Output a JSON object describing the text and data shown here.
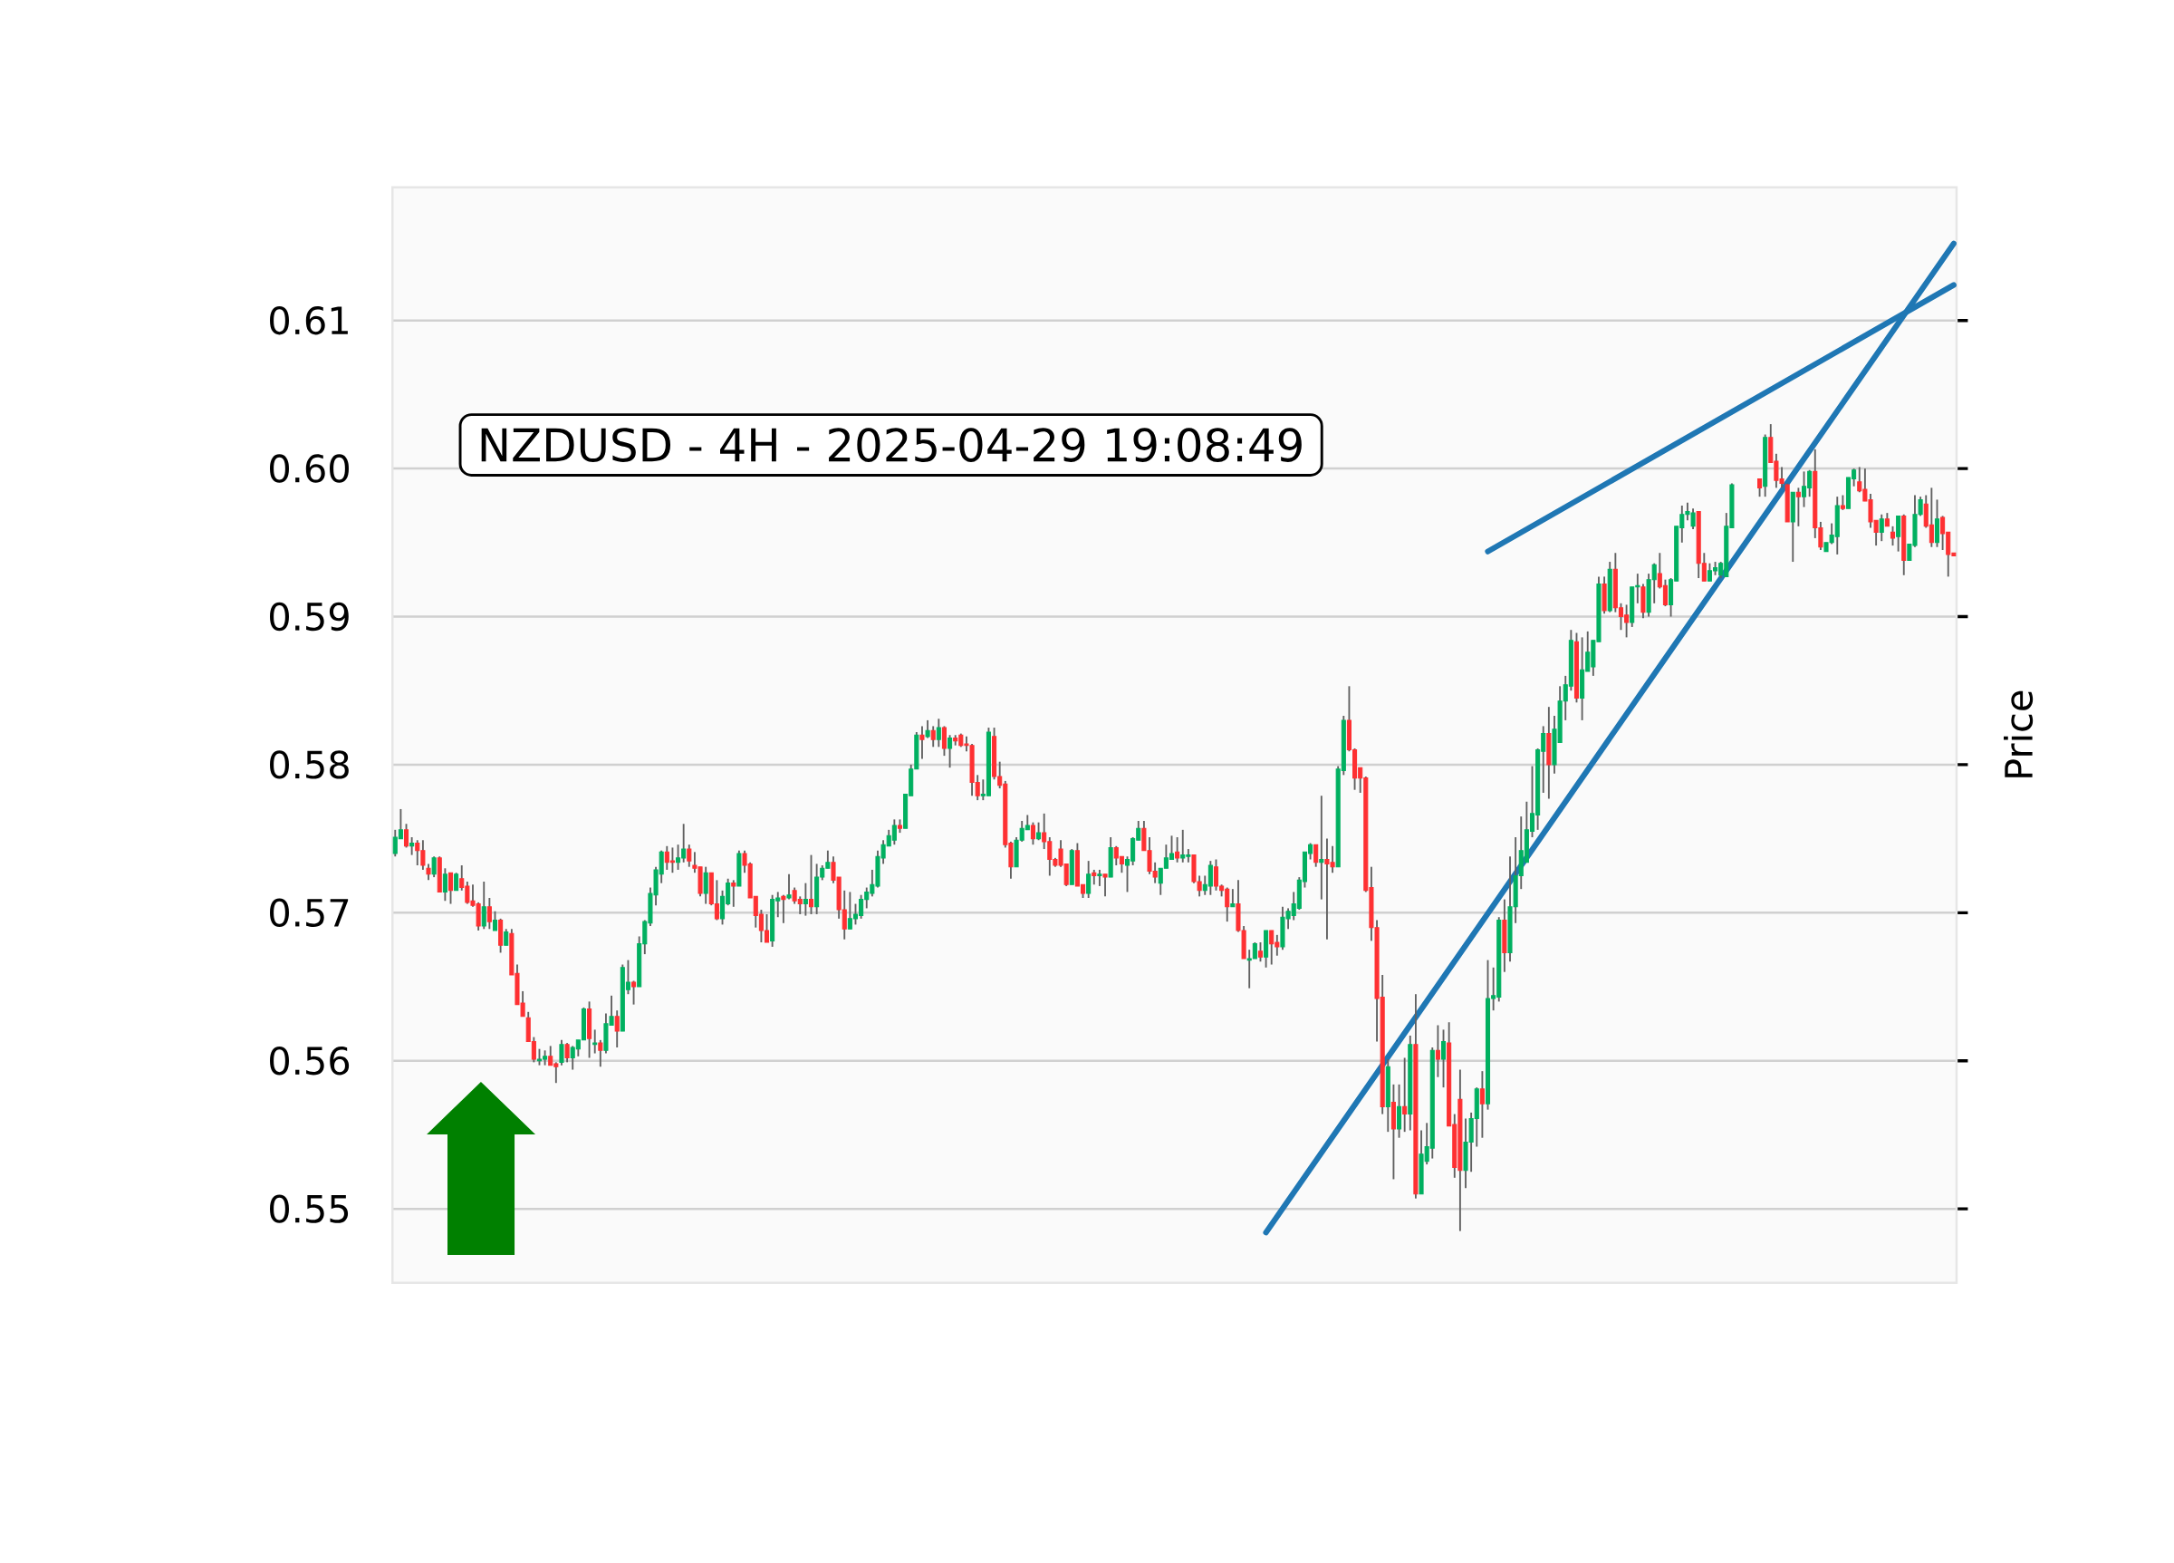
{
  "chart_data": {
    "type": "candlestick",
    "title": "NZDUSD - 4H - 2025-04-29 19:08:49",
    "ylabel": "Price",
    "categories": [
      null,
      null,
      null,
      null,
      null,
      null,
      null,
      null,
      null,
      null,
      null,
      null,
      null,
      null,
      null,
      null,
      null,
      null,
      null,
      null,
      null,
      null,
      null,
      null,
      null,
      null,
      null,
      null,
      null,
      null,
      null,
      null,
      null,
      null,
      null,
      null,
      null,
      null,
      null,
      null,
      null,
      null,
      null,
      null,
      null,
      null,
      null,
      null,
      null,
      null,
      null,
      null,
      null,
      null,
      null,
      null,
      null,
      null,
      null,
      null,
      null,
      null,
      null,
      null,
      null,
      null,
      null,
      null,
      null,
      null,
      null,
      null,
      null,
      null,
      null,
      null,
      null,
      null,
      null,
      null,
      null,
      null,
      null,
      null,
      null,
      null,
      null,
      null,
      null,
      null,
      null,
      null,
      null,
      null,
      null,
      null,
      null,
      null,
      null,
      null,
      null,
      null,
      null,
      null,
      null,
      null,
      null,
      null,
      null,
      null,
      null,
      null,
      null,
      null,
      null,
      null,
      null,
      null,
      null,
      null,
      null,
      null,
      null,
      null,
      null,
      null,
      null,
      null,
      null,
      null,
      null,
      null,
      null,
      null,
      null,
      null,
      null,
      null,
      null,
      null,
      null,
      null,
      null,
      null,
      null,
      null,
      null,
      null,
      null,
      null,
      null,
      null,
      null,
      null,
      null,
      null,
      null,
      null,
      null,
      null,
      null,
      null,
      null,
      null,
      null,
      null,
      null,
      null,
      null,
      null,
      null,
      null,
      null,
      null,
      null,
      null,
      null,
      null,
      null,
      null,
      null,
      null,
      null,
      null,
      null,
      null,
      null,
      null,
      null,
      null,
      null,
      null,
      null,
      null,
      null,
      null,
      null,
      null,
      null,
      null,
      null,
      null,
      null,
      null,
      null,
      null,
      null,
      null,
      null,
      null,
      null,
      null,
      null,
      null,
      null,
      null,
      null,
      null,
      null,
      null,
      null,
      null,
      null,
      null,
      null,
      null,
      null,
      null,
      null,
      null,
      null,
      null,
      null,
      null,
      null,
      null,
      null,
      null,
      null,
      null,
      null,
      null,
      null,
      null,
      null,
      null,
      null,
      null,
      null,
      null,
      null,
      null,
      null,
      null,
      null,
      null,
      null,
      null,
      null,
      null,
      null,
      null,
      null,
      null,
      null,
      null,
      null,
      null,
      null,
      null,
      null,
      null,
      null,
      null,
      null,
      null,
      null,
      null,
      null,
      null,
      null,
      null
    ],
    "ylim": [
      0.545,
      0.619
    ],
    "yticks": [
      0.55,
      0.56,
      0.57,
      0.58,
      0.59,
      {
        "value": 0.6,
        "label": "0.60"
      },
      0.61
    ],
    "grid": "y",
    "ohlc": [
      [
        0.574,
        0.5756,
        0.5738,
        0.5751
      ],
      [
        0.575,
        0.577,
        0.575,
        0.5756
      ],
      [
        0.5756,
        0.576,
        0.5744,
        0.5745
      ],
      [
        0.5745,
        0.5751,
        0.5739,
        0.5747
      ],
      [
        0.5747,
        0.5749,
        0.5732,
        0.5742
      ],
      [
        0.5742,
        0.5749,
        0.5729,
        0.5732
      ],
      [
        0.573,
        0.5733,
        0.5722,
        0.5726
      ],
      [
        0.5726,
        0.5738,
        0.5724,
        0.5737
      ],
      [
        0.5737,
        0.5738,
        0.5714,
        0.5714
      ],
      [
        0.5714,
        0.573,
        0.5708,
        0.5726
      ],
      [
        0.5727,
        0.5727,
        0.5706,
        0.5715
      ],
      [
        0.5715,
        0.5727,
        0.5715,
        0.5726
      ],
      [
        0.5723,
        0.5732,
        0.5715,
        0.5717
      ],
      [
        0.5718,
        0.5721,
        0.5706,
        0.5707
      ],
      [
        0.5708,
        0.5719,
        0.5704,
        0.5705
      ],
      [
        0.5706,
        0.5707,
        0.5688,
        0.5691
      ],
      [
        0.5691,
        0.5721,
        0.5689,
        0.5704
      ],
      [
        0.5704,
        0.571,
        0.5689,
        0.5694
      ],
      [
        0.5688,
        0.5701,
        0.5688,
        0.5695
      ],
      [
        0.5695,
        0.5696,
        0.5673,
        0.5678
      ],
      [
        0.5678,
        0.5689,
        0.5678,
        0.5687
      ],
      [
        0.5686,
        0.5689,
        0.5658,
        0.5658
      ],
      [
        0.5659,
        0.5665,
        0.5638,
        0.5638
      ],
      [
        0.5639,
        0.5647,
        0.563,
        0.563
      ],
      [
        0.5629,
        0.5633,
        0.5613,
        0.5613
      ],
      [
        0.5613,
        0.5616,
        0.5599,
        0.5601
      ],
      [
        0.56,
        0.5608,
        0.5597,
        0.5601
      ],
      [
        0.5601,
        0.5607,
        0.5597,
        0.5603
      ],
      [
        0.5603,
        0.561,
        0.5597,
        0.5597
      ],
      [
        0.5598,
        0.5599,
        0.5585,
        0.5596
      ],
      [
        0.5599,
        0.5614,
        0.5597,
        0.5611
      ],
      [
        0.5611,
        0.5612,
        0.5599,
        0.5602
      ],
      [
        0.5602,
        0.561,
        0.5594,
        0.5609
      ],
      [
        0.5608,
        0.5614,
        0.5603,
        0.5614
      ],
      [
        0.5614,
        0.5636,
        0.5614,
        0.5635
      ],
      [
        0.5635,
        0.564,
        0.5602,
        0.5615
      ],
      [
        0.5611,
        0.5621,
        0.5605,
        0.5612
      ],
      [
        0.5612,
        0.5614,
        0.5596,
        0.5607
      ],
      [
        0.5607,
        0.5632,
        0.5605,
        0.5625
      ],
      [
        0.5624,
        0.5644,
        0.5624,
        0.563
      ],
      [
        0.563,
        0.5634,
        0.5609,
        0.562
      ],
      [
        0.562,
        0.5665,
        0.562,
        0.5663
      ],
      [
        0.5648,
        0.5668,
        0.5645,
        0.5653
      ],
      [
        0.5653,
        0.5654,
        0.5638,
        0.565
      ],
      [
        0.565,
        0.5684,
        0.565,
        0.5679
      ],
      [
        0.5679,
        0.5695,
        0.5672,
        0.5694
      ],
      [
        0.5693,
        0.5717,
        0.5691,
        0.5713
      ],
      [
        0.5712,
        0.5731,
        0.5705,
        0.5729
      ],
      [
        0.5726,
        0.5742,
        0.572,
        0.5741
      ],
      [
        0.5741,
        0.5745,
        0.5729,
        0.5734
      ],
      [
        0.5735,
        0.5744,
        0.5727,
        0.5734
      ],
      [
        0.5734,
        0.5746,
        0.5729,
        0.5737
      ],
      [
        0.5737,
        0.576,
        0.5734,
        0.5743
      ],
      [
        0.5743,
        0.5746,
        0.5731,
        0.5735
      ],
      [
        0.5732,
        0.5741,
        0.5727,
        0.573
      ],
      [
        0.5731,
        0.5731,
        0.5711,
        0.5713
      ],
      [
        0.5713,
        0.5731,
        0.5706,
        0.5727
      ],
      [
        0.5727,
        0.5727,
        0.5705,
        0.5706
      ],
      [
        0.5706,
        0.5722,
        0.5695,
        0.5696
      ],
      [
        0.5696,
        0.5715,
        0.5692,
        0.5711
      ],
      [
        0.5706,
        0.5723,
        0.5705,
        0.572
      ],
      [
        0.572,
        0.5722,
        0.5704,
        0.5718
      ],
      [
        0.5718,
        0.5742,
        0.5718,
        0.574
      ],
      [
        0.574,
        0.5742,
        0.5727,
        0.5732
      ],
      [
        0.5733,
        0.5734,
        0.571,
        0.571
      ],
      [
        0.5711,
        0.5711,
        0.569,
        0.5698
      ],
      [
        0.5699,
        0.5702,
        0.568,
        0.5688
      ],
      [
        0.5688,
        0.5699,
        0.568,
        0.568
      ],
      [
        0.5681,
        0.5712,
        0.5677,
        0.5709
      ],
      [
        0.5708,
        0.5714,
        0.5697,
        0.571
      ],
      [
        0.5711,
        0.5712,
        0.5693,
        0.5709
      ],
      [
        0.571,
        0.5726,
        0.5709,
        0.5712
      ],
      [
        0.5715,
        0.5717,
        0.5706,
        0.5708
      ],
      [
        0.5709,
        0.5711,
        0.5699,
        0.5706
      ],
      [
        0.5706,
        0.572,
        0.5698,
        0.5709
      ],
      [
        0.5709,
        0.5739,
        0.5699,
        0.5704
      ],
      [
        0.5704,
        0.5733,
        0.5699,
        0.5724
      ],
      [
        0.5724,
        0.5732,
        0.5722,
        0.573
      ],
      [
        0.573,
        0.5742,
        0.573,
        0.5734
      ],
      [
        0.5734,
        0.5738,
        0.572,
        0.5722
      ],
      [
        0.5724,
        0.5724,
        0.5696,
        0.5702
      ],
      [
        0.5702,
        0.5715,
        0.5682,
        0.5689
      ],
      [
        0.5689,
        0.5714,
        0.5689,
        0.5696
      ],
      [
        0.5696,
        0.5706,
        0.5692,
        0.5699
      ],
      [
        0.5698,
        0.5712,
        0.5696,
        0.5709
      ],
      [
        0.5709,
        0.5717,
        0.5703,
        0.5714
      ],
      [
        0.5713,
        0.5729,
        0.5711,
        0.5719
      ],
      [
        0.5718,
        0.5742,
        0.5717,
        0.5738
      ],
      [
        0.5737,
        0.5749,
        0.5733,
        0.5746
      ],
      [
        0.5745,
        0.5756,
        0.5745,
        0.5752
      ],
      [
        0.5749,
        0.5763,
        0.5746,
        0.5759
      ],
      [
        0.5759,
        0.5763,
        0.5754,
        0.5757
      ],
      [
        0.5757,
        0.578,
        0.5757,
        0.578
      ],
      [
        0.5779,
        0.58,
        0.5779,
        0.5797
      ],
      [
        0.5797,
        0.5822,
        0.5797,
        0.582
      ],
      [
        0.582,
        0.5826,
        0.5804,
        0.5817
      ],
      [
        0.5819,
        0.583,
        0.5818,
        0.5823
      ],
      [
        0.5823,
        0.5826,
        0.5812,
        0.5817
      ],
      [
        0.5817,
        0.5831,
        0.5812,
        0.5825
      ],
      [
        0.5825,
        0.5826,
        0.5806,
        0.5811
      ],
      [
        0.5811,
        0.582,
        0.5798,
        0.5818
      ],
      [
        0.5818,
        0.582,
        0.5813,
        0.5816
      ],
      [
        0.582,
        0.5821,
        0.5812,
        0.5813
      ],
      [
        0.5814,
        0.5819,
        0.5809,
        0.5813
      ],
      [
        0.5813,
        0.5814,
        0.5779,
        0.5788
      ],
      [
        0.5788,
        0.5793,
        0.5776,
        0.5779
      ],
      [
        0.5779,
        0.579,
        0.5776,
        0.578
      ],
      [
        0.5779,
        0.5825,
        0.5779,
        0.5822
      ],
      [
        0.5819,
        0.5825,
        0.579,
        0.5792
      ],
      [
        0.5792,
        0.5802,
        0.5784,
        0.5786
      ],
      [
        0.5787,
        0.5789,
        0.5744,
        0.5746
      ],
      [
        0.5747,
        0.5748,
        0.5723,
        0.5731
      ],
      [
        0.5731,
        0.5751,
        0.5731,
        0.5749
      ],
      [
        0.5749,
        0.5762,
        0.5748,
        0.5757
      ],
      [
        0.5756,
        0.5766,
        0.5756,
        0.5759
      ],
      [
        0.5759,
        0.5761,
        0.5746,
        0.575
      ],
      [
        0.575,
        0.5761,
        0.5749,
        0.5754
      ],
      [
        0.5754,
        0.5767,
        0.5743,
        0.5748
      ],
      [
        0.5748,
        0.5751,
        0.5725,
        0.5736
      ],
      [
        0.5736,
        0.5737,
        0.5731,
        0.5732
      ],
      [
        0.5743,
        0.5749,
        0.5731,
        0.5732
      ],
      [
        0.5733,
        0.5733,
        0.5718,
        0.5719
      ],
      [
        0.5719,
        0.5743,
        0.5719,
        0.5742
      ],
      [
        0.5742,
        0.5747,
        0.5718,
        0.5718
      ],
      [
        0.5719,
        0.5719,
        0.571,
        0.5713
      ],
      [
        0.5713,
        0.5735,
        0.571,
        0.5726
      ],
      [
        0.5727,
        0.5729,
        0.5719,
        0.5725
      ],
      [
        0.5725,
        0.5729,
        0.5718,
        0.5726
      ],
      [
        0.5726,
        0.5726,
        0.5711,
        0.5724
      ],
      [
        0.5724,
        0.5751,
        0.5724,
        0.5744
      ],
      [
        0.5744,
        0.5745,
        0.5732,
        0.5737
      ],
      [
        0.5738,
        0.5738,
        0.5727,
        0.5733
      ],
      [
        0.5732,
        0.5738,
        0.5714,
        0.5736
      ],
      [
        0.5735,
        0.5751,
        0.5732,
        0.575
      ],
      [
        0.5749,
        0.5762,
        0.5749,
        0.5757
      ],
      [
        0.5757,
        0.5762,
        0.5742,
        0.5742
      ],
      [
        0.5742,
        0.5751,
        0.5726,
        0.5728
      ],
      [
        0.5728,
        0.5734,
        0.572,
        0.5724
      ],
      [
        0.572,
        0.573,
        0.5712,
        0.573
      ],
      [
        0.573,
        0.5746,
        0.573,
        0.5737
      ],
      [
        0.5736,
        0.5752,
        0.5736,
        0.574
      ],
      [
        0.5741,
        0.5751,
        0.5734,
        0.5737
      ],
      [
        0.5737,
        0.5756,
        0.5734,
        0.5739
      ],
      [
        0.5738,
        0.5743,
        0.5734,
        0.5739
      ],
      [
        0.5739,
        0.5739,
        0.572,
        0.5721
      ],
      [
        0.5721,
        0.5725,
        0.5711,
        0.5715
      ],
      [
        0.5715,
        0.5725,
        0.5712,
        0.5719
      ],
      [
        0.5718,
        0.5735,
        0.5712,
        0.5732
      ],
      [
        0.5731,
        0.5736,
        0.5715,
        0.5718
      ],
      [
        0.5718,
        0.5719,
        0.5711,
        0.5715
      ],
      [
        0.5716,
        0.5717,
        0.5694,
        0.5704
      ],
      [
        0.5704,
        0.5716,
        0.5704,
        0.5706
      ],
      [
        0.5706,
        0.5722,
        0.5687,
        0.5688
      ],
      [
        0.5688,
        0.5691,
        0.5669,
        0.5669
      ],
      [
        0.5668,
        0.5675,
        0.5649,
        0.5669
      ],
      [
        0.5669,
        0.568,
        0.5669,
        0.5679
      ],
      [
        0.5674,
        0.568,
        0.5667,
        0.567
      ],
      [
        0.567,
        0.5688,
        0.5663,
        0.5688
      ],
      [
        0.5688,
        0.5688,
        0.5665,
        0.5679
      ],
      [
        0.568,
        0.5685,
        0.5671,
        0.5677
      ],
      [
        0.5677,
        0.5704,
        0.5675,
        0.5697
      ],
      [
        0.5696,
        0.5703,
        0.5689,
        0.5701
      ],
      [
        0.5698,
        0.5714,
        0.5695,
        0.5706
      ],
      [
        0.5703,
        0.5724,
        0.5702,
        0.5722
      ],
      [
        0.5721,
        0.5741,
        0.5717,
        0.5741
      ],
      [
        0.574,
        0.5747,
        0.5736,
        0.5746
      ],
      [
        0.5746,
        0.5746,
        0.5731,
        0.5734
      ],
      [
        0.5734,
        0.5779,
        0.5709,
        0.5736
      ],
      [
        0.5736,
        0.575,
        0.5682,
        0.5733
      ],
      [
        0.5734,
        0.5745,
        0.5727,
        0.5731
      ],
      [
        0.5731,
        0.5799,
        0.5731,
        0.5797
      ],
      [
        0.5796,
        0.5833,
        0.5793,
        0.583
      ],
      [
        0.583,
        0.5853,
        0.5809,
        0.581
      ],
      [
        0.581,
        0.5811,
        0.5783,
        0.5791
      ],
      [
        0.5798,
        0.5798,
        0.5781,
        0.5791
      ],
      [
        0.5791,
        0.5792,
        0.5714,
        0.5715
      ],
      [
        0.5717,
        0.5731,
        0.5681,
        0.569
      ],
      [
        0.569,
        0.5695,
        0.5613,
        0.5642
      ],
      [
        0.5643,
        0.5658,
        0.5564,
        0.5569
      ],
      [
        0.5569,
        0.5601,
        0.5552,
        0.5596
      ],
      [
        0.5572,
        0.5584,
        0.552,
        0.5554
      ],
      [
        0.5554,
        0.5584,
        0.5548,
        0.5569
      ],
      [
        0.5569,
        0.5602,
        0.5552,
        0.5564
      ],
      [
        0.5564,
        0.5617,
        0.5553,
        0.5611
      ],
      [
        0.5611,
        0.5645,
        0.5507,
        0.551
      ],
      [
        0.551,
        0.5553,
        0.551,
        0.5537
      ],
      [
        0.5532,
        0.5558,
        0.553,
        0.5542
      ],
      [
        0.5541,
        0.5609,
        0.5534,
        0.5607
      ],
      [
        0.5607,
        0.5624,
        0.5589,
        0.5601
      ],
      [
        0.5601,
        0.5621,
        0.5582,
        0.5613
      ],
      [
        0.5612,
        0.5626,
        0.5556,
        0.5556
      ],
      [
        0.5557,
        0.5564,
        0.5521,
        0.5528
      ],
      [
        0.5574,
        0.5594,
        0.5485,
        0.5526
      ],
      [
        0.5526,
        0.5561,
        0.5514,
        0.5545
      ],
      [
        0.5545,
        0.5565,
        0.5525,
        0.5561
      ],
      [
        0.5561,
        0.5582,
        0.5542,
        0.5581
      ],
      [
        0.5581,
        0.5593,
        0.5548,
        0.5571
      ],
      [
        0.5571,
        0.5668,
        0.5567,
        0.5642
      ],
      [
        0.5642,
        0.5663,
        0.5634,
        0.5644
      ],
      [
        0.5643,
        0.5697,
        0.564,
        0.5695
      ],
      [
        0.5695,
        0.5709,
        0.566,
        0.5673
      ],
      [
        0.5673,
        0.5738,
        0.5667,
        0.5704
      ],
      [
        0.5704,
        0.5751,
        0.5693,
        0.5725
      ],
      [
        0.5725,
        0.5765,
        0.5716,
        0.5742
      ],
      [
        0.5734,
        0.5775,
        0.5734,
        0.5756
      ],
      [
        0.5755,
        0.5799,
        0.5751,
        0.5767
      ],
      [
        0.5766,
        0.5811,
        0.5756,
        0.581
      ],
      [
        0.5809,
        0.5826,
        0.5781,
        0.5821
      ],
      [
        0.5821,
        0.5839,
        0.5777,
        0.58
      ],
      [
        0.58,
        0.5833,
        0.5794,
        0.5824
      ],
      [
        0.5815,
        0.5853,
        0.5815,
        0.5843
      ],
      [
        0.5843,
        0.586,
        0.583,
        0.5854
      ],
      [
        0.5853,
        0.5891,
        0.585,
        0.5884
      ],
      [
        0.5883,
        0.5889,
        0.5842,
        0.5845
      ],
      [
        0.5845,
        0.5886,
        0.583,
        0.5864
      ],
      [
        0.5863,
        0.589,
        0.5863,
        0.5876
      ],
      [
        0.5866,
        0.5884,
        0.586,
        0.5884
      ],
      [
        0.5883,
        0.5927,
        0.5883,
        0.5922
      ],
      [
        0.5922,
        0.5927,
        0.5902,
        0.5904
      ],
      [
        0.5904,
        0.5937,
        0.5903,
        0.5932
      ],
      [
        0.5932,
        0.5943,
        0.5903,
        0.5906
      ],
      [
        0.5906,
        0.5909,
        0.5891,
        0.59
      ],
      [
        0.5901,
        0.5908,
        0.5886,
        0.5896
      ],
      [
        0.5896,
        0.592,
        0.5893,
        0.592
      ],
      [
        0.592,
        0.5929,
        0.5909,
        0.5921
      ],
      [
        0.592,
        0.5922,
        0.5899,
        0.5903
      ],
      [
        0.5903,
        0.5929,
        0.59,
        0.5925
      ],
      [
        0.5925,
        0.5936,
        0.5909,
        0.5935
      ],
      [
        0.5929,
        0.5943,
        0.5919,
        0.592
      ],
      [
        0.5921,
        0.5925,
        0.5907,
        0.5908
      ],
      [
        0.5908,
        0.5926,
        0.59,
        0.5925
      ],
      [
        0.5924,
        0.5961,
        0.5924,
        0.5961
      ],
      [
        0.596,
        0.5975,
        0.595,
        0.5969
      ],
      [
        0.5969,
        0.5977,
        0.5965,
        0.5971
      ],
      [
        0.5961,
        0.5973,
        0.5959,
        0.597
      ],
      [
        0.5971,
        0.5971,
        0.5926,
        0.5936
      ],
      [
        0.5936,
        0.5943,
        0.5924,
        0.5924
      ],
      [
        0.5924,
        0.5936,
        0.5924,
        0.5931
      ],
      [
        0.5931,
        0.5937,
        0.5928,
        0.5933
      ],
      [
        0.5928,
        0.5937,
        0.5926,
        0.5936
      ],
      [
        0.5927,
        0.597,
        0.5927,
        0.5961
      ],
      [
        0.596,
        0.599,
        0.596,
        0.5989
      ],
      null,
      null,
      null,
      null,
      [
        0.5993,
        0.5993,
        0.5981,
        0.5987
      ],
      [
        0.5988,
        0.6023,
        0.5981,
        0.6021
      ],
      [
        0.6021,
        0.603,
        0.6004,
        0.6004
      ],
      [
        0.6005,
        0.601,
        0.5987,
        0.5992
      ],
      [
        0.5993,
        0.6001,
        0.5987,
        0.599
      ],
      [
        0.5989,
        0.599,
        0.5964,
        0.5964
      ],
      [
        0.5964,
        0.5984,
        0.5937,
        0.5984
      ],
      [
        0.5984,
        0.5987,
        0.5961,
        0.5981
      ],
      [
        0.5981,
        0.5998,
        0.5974,
        0.5988
      ],
      [
        0.5987,
        0.5999,
        0.5981,
        0.5998
      ],
      [
        0.5998,
        0.6013,
        0.5953,
        0.596
      ],
      [
        0.596,
        0.5964,
        0.5945,
        0.5947
      ],
      [
        0.5944,
        0.595,
        0.5944,
        0.595
      ],
      [
        0.595,
        0.5963,
        0.5949,
        0.5955
      ],
      [
        0.5954,
        0.5981,
        0.5942,
        0.5975
      ],
      [
        0.5975,
        0.5982,
        0.5972,
        0.5973
      ],
      [
        0.5973,
        0.5994,
        0.5973,
        0.5994
      ],
      [
        0.5993,
        0.6,
        0.5988,
        0.5999
      ],
      [
        0.5991,
        0.6001,
        0.5984,
        0.5985
      ],
      [
        0.5986,
        0.6,
        0.5978,
        0.5978
      ],
      [
        0.5979,
        0.5983,
        0.596,
        0.5964
      ],
      [
        0.5965,
        0.5965,
        0.5948,
        0.5957
      ],
      [
        0.5957,
        0.5969,
        0.5951,
        0.5966
      ],
      [
        0.5966,
        0.597,
        0.5961,
        0.5961
      ],
      [
        0.5957,
        0.5961,
        0.5948,
        0.5953
      ],
      [
        0.5954,
        0.5968,
        0.5944,
        0.5968
      ],
      [
        0.5968,
        0.5969,
        0.5928,
        0.5938
      ],
      [
        0.5938,
        0.5949,
        0.5938,
        0.5949
      ],
      [
        0.5948,
        0.5982,
        0.5947,
        0.5969
      ],
      [
        0.5969,
        0.5981,
        0.5968,
        0.5979
      ],
      [
        0.5976,
        0.5982,
        0.596,
        0.5961
      ],
      [
        0.5962,
        0.5987,
        0.5947,
        0.595
      ],
      [
        0.595,
        0.5979,
        0.5947,
        0.5966
      ],
      [
        0.5967,
        0.5968,
        0.5945,
        0.5956
      ],
      [
        0.5957,
        0.5957,
        0.5927,
        0.5942
      ],
      [
        0.5943,
        0.5943,
        0.5941,
        0.5941
      ]
    ],
    "colors": [
      "#00b060",
      "#00b060",
      "#fe3032",
      "#00b060",
      "#fe3032",
      "#fe3032",
      "#fe3032",
      "#00b060",
      "#fe3032",
      "#00b060",
      "#fe3032",
      "#00b060",
      "#fe3032",
      "#fe3032",
      "#fe3032",
      "#fe3032",
      "#00b060",
      "#fe3032",
      "#00b060",
      "#fe3032",
      "#00b060",
      "#fe3032",
      "#fe3032",
      "#fe3032",
      "#fe3032",
      "#fe3032",
      "#00b060",
      "#00b060",
      "#fe3032",
      "#fe3032",
      "#00b060",
      "#fe3032",
      "#00b060",
      "#00b060",
      "#00b060",
      "#fe3032",
      "#00b060",
      "#fe3032",
      "#00b060",
      "#00b060",
      "#fe3032",
      "#00b060",
      "#00b060",
      "#fe3032",
      "#00b060",
      "#00b060",
      "#00b060",
      "#00b060",
      "#00b060",
      "#fe3032",
      "#fe3032",
      "#00b060",
      "#00b060",
      "#fe3032",
      "#fe3032",
      "#fe3032",
      "#00b060",
      "#fe3032",
      "#fe3032",
      "#00b060",
      "#00b060",
      "#fe3032",
      "#00b060",
      "#fe3032",
      "#fe3032",
      "#fe3032",
      "#fe3032",
      "#fe3032",
      "#00b060",
      "#00b060",
      "#fe3032",
      "#00b060",
      "#fe3032",
      "#fe3032",
      "#00b060",
      "#fe3032",
      "#00b060",
      "#00b060",
      "#00b060",
      "#fe3032",
      "#fe3032",
      "#fe3032",
      "#00b060",
      "#00b060",
      "#00b060",
      "#00b060",
      "#00b060",
      "#00b060",
      "#00b060",
      "#00b060",
      "#00b060",
      "#fe3032",
      "#00b060",
      "#00b060",
      "#00b060",
      "#fe3032",
      "#00b060",
      "#fe3032",
      "#00b060",
      "#fe3032",
      "#00b060",
      "#fe3032",
      "#fe3032",
      "#fe3032",
      "#fe3032",
      "#fe3032",
      "#00b060",
      "#00b060",
      "#fe3032",
      "#fe3032",
      "#fe3032",
      "#fe3032",
      "#00b060",
      "#00b060",
      "#00b060",
      "#fe3032",
      "#00b060",
      "#fe3032",
      "#fe3032",
      "#fe3032",
      "#fe3032",
      "#fe3032",
      "#00b060",
      "#fe3032",
      "#fe3032",
      "#00b060",
      "#fe3032",
      "#00b060",
      "#fe3032",
      "#00b060",
      "#fe3032",
      "#fe3032",
      "#00b060",
      "#00b060",
      "#00b060",
      "#fe3032",
      "#fe3032",
      "#fe3032",
      "#00b060",
      "#00b060",
      "#00b060",
      "#fe3032",
      "#00b060",
      "#00b060",
      "#fe3032",
      "#fe3032",
      "#00b060",
      "#00b060",
      "#fe3032",
      "#fe3032",
      "#fe3032",
      "#00b060",
      "#fe3032",
      "#fe3032",
      "#00b060",
      "#00b060",
      "#fe3032",
      "#00b060",
      "#fe3032",
      "#fe3032",
      "#00b060",
      "#00b060",
      "#00b060",
      "#00b060",
      "#00b060",
      "#00b060",
      "#fe3032",
      "#00b060",
      "#fe3032",
      "#fe3032",
      "#00b060",
      "#00b060",
      "#fe3032",
      "#fe3032",
      "#fe3032",
      "#fe3032",
      "#fe3032",
      "#fe3032",
      "#fe3032",
      "#00b060",
      "#fe3032",
      "#00b060",
      "#fe3032",
      "#00b060",
      "#fe3032",
      "#00b060",
      "#00b060",
      "#00b060",
      "#fe3032",
      "#00b060",
      "#fe3032",
      "#fe3032",
      "#fe3032",
      "#00b060",
      "#00b060",
      "#00b060",
      "#fe3032",
      "#00b060",
      "#00b060",
      "#00b060",
      "#fe3032",
      "#00b060",
      "#00b060",
      "#00b060",
      "#00b060",
      "#00b060",
      "#00b060",
      "#00b060",
      "#fe3032",
      "#00b060",
      "#00b060",
      "#00b060",
      "#00b060",
      "#fe3032",
      "#00b060",
      "#00b060",
      "#00b060",
      "#00b060",
      "#fe3032",
      "#00b060",
      "#fe3032",
      "#fe3032",
      "#fe3032",
      "#00b060",
      "#00b060",
      "#fe3032",
      "#00b060",
      "#00b060",
      "#fe3032",
      "#fe3032",
      "#00b060",
      "#00b060",
      "#00b060",
      "#00b060",
      "#00b060",
      "#fe3032",
      "#fe3032",
      "#00b060",
      "#00b060",
      "#00b060",
      "#00b060",
      "#00b060",
      null,
      null,
      null,
      null,
      "#fe3032",
      "#00b060",
      "#fe3032",
      "#fe3032",
      "#fe3032",
      "#fe3032",
      "#00b060",
      "#fe3032",
      "#00b060",
      "#00b060",
      "#fe3032",
      "#fe3032",
      "#00b060",
      "#00b060",
      "#00b060",
      "#fe3032",
      "#00b060",
      "#00b060",
      "#fe3032",
      "#fe3032",
      "#fe3032",
      "#fe3032",
      "#00b060",
      "#fe3032",
      "#fe3032",
      "#00b060",
      "#fe3032",
      "#00b060",
      "#00b060",
      "#00b060",
      "#fe3032",
      "#fe3032",
      "#00b060",
      "#fe3032",
      "#fe3032",
      "#fe3032"
    ],
    "series": [
      {
        "type": "line",
        "color": "#1f77b4",
        "values": [
          null,
          null,
          null,
          null,
          null,
          null,
          null,
          null,
          null,
          null,
          null,
          null,
          null,
          null,
          null,
          null,
          null,
          null,
          null,
          null,
          null,
          null,
          null,
          null,
          null,
          null,
          null,
          null,
          null,
          null,
          null,
          null,
          null,
          null,
          null,
          null,
          null,
          null,
          null,
          null,
          null,
          null,
          null,
          null,
          null,
          null,
          null,
          null,
          null,
          null,
          null,
          null,
          null,
          null,
          null,
          null,
          null,
          null,
          null,
          null,
          null,
          null,
          null,
          null,
          null,
          null,
          null,
          null,
          null,
          null,
          null,
          null,
          null,
          null,
          null,
          null,
          null,
          null,
          null,
          null,
          null,
          null,
          null,
          null,
          null,
          null,
          null,
          null,
          null,
          null,
          null,
          null,
          null,
          null,
          null,
          null,
          null,
          null,
          null,
          null,
          null,
          null,
          null,
          null,
          null,
          null,
          null,
          null,
          null,
          null,
          null,
          null,
          null,
          null,
          null,
          null,
          null,
          null,
          null,
          null,
          null,
          null,
          null,
          null,
          null,
          null,
          null,
          null,
          null,
          null,
          null,
          null,
          null,
          null,
          null,
          null,
          null,
          null,
          null,
          null,
          null,
          null,
          null,
          null,
          null,
          null,
          null,
          null,
          null,
          null,
          null,
          null,
          null,
          null,
          null,
          null,
          null,
          0.5484,
          null,
          null,
          null,
          null,
          null,
          null,
          null,
          null,
          null,
          null,
          null,
          null,
          null,
          null,
          null,
          null,
          null,
          null,
          null,
          null,
          null,
          null,
          null,
          null,
          null,
          null,
          null,
          null,
          null,
          null,
          null,
          null,
          null,
          null,
          null,
          null,
          null,
          null,
          null,
          null,
          null,
          null,
          null,
          null,
          null,
          null,
          null,
          null,
          null,
          null,
          null,
          null,
          null,
          null,
          null,
          null,
          null,
          null,
          null,
          null,
          null,
          null,
          null,
          null,
          null,
          null,
          null,
          null,
          null,
          null,
          null,
          null,
          null,
          null,
          null,
          null,
          null,
          null,
          null,
          null,
          null,
          null,
          null,
          null,
          null,
          null,
          null,
          null,
          null,
          null,
          null,
          null,
          null,
          null,
          null,
          null,
          null,
          null,
          null,
          null,
          null,
          null,
          null,
          null,
          null,
          null,
          null,
          null,
          null,
          null,
          null,
          null,
          null,
          null,
          null,
          null,
          null,
          null,
          null,
          null,
          null,
          null,
          null,
          0.6152
        ]
      },
      {
        "type": "line",
        "color": "#1f77b4",
        "values": [
          null,
          null,
          null,
          null,
          null,
          null,
          null,
          null,
          null,
          null,
          null,
          null,
          null,
          null,
          null,
          null,
          null,
          null,
          null,
          null,
          null,
          null,
          null,
          null,
          null,
          null,
          null,
          null,
          null,
          null,
          null,
          null,
          null,
          null,
          null,
          null,
          null,
          null,
          null,
          null,
          null,
          null,
          null,
          null,
          null,
          null,
          null,
          null,
          null,
          null,
          null,
          null,
          null,
          null,
          null,
          null,
          null,
          null,
          null,
          null,
          null,
          null,
          null,
          null,
          null,
          null,
          null,
          null,
          null,
          null,
          null,
          null,
          null,
          null,
          null,
          null,
          null,
          null,
          null,
          null,
          null,
          null,
          null,
          null,
          null,
          null,
          null,
          null,
          null,
          null,
          null,
          null,
          null,
          null,
          null,
          null,
          null,
          null,
          null,
          null,
          null,
          null,
          null,
          null,
          null,
          null,
          null,
          null,
          null,
          null,
          null,
          null,
          null,
          null,
          null,
          null,
          null,
          null,
          null,
          null,
          null,
          null,
          null,
          null,
          null,
          null,
          null,
          null,
          null,
          null,
          null,
          null,
          null,
          null,
          null,
          null,
          null,
          null,
          null,
          null,
          null,
          null,
          null,
          null,
          null,
          null,
          null,
          null,
          null,
          null,
          null,
          null,
          null,
          null,
          null,
          null,
          null,
          null,
          null,
          null,
          null,
          null,
          null,
          null,
          null,
          null,
          null,
          null,
          null,
          null,
          null,
          null,
          null,
          null,
          null,
          null,
          null,
          null,
          null,
          null,
          null,
          null,
          null,
          null,
          null,
          null,
          null,
          null,
          null,
          null,
          null,
          null,
          null,
          null,
          null,
          null,
          null,
          0.5944,
          null,
          null,
          null,
          null,
          null,
          null,
          null,
          null,
          null,
          null,
          null,
          null,
          null,
          null,
          null,
          null,
          null,
          null,
          null,
          null,
          null,
          null,
          null,
          null,
          null,
          null,
          null,
          null,
          null,
          null,
          null,
          null,
          null,
          null,
          null,
          null,
          null,
          null,
          null,
          null,
          null,
          null,
          null,
          null,
          null,
          null,
          null,
          null,
          null,
          null,
          null,
          null,
          null,
          null,
          null,
          null,
          null,
          null,
          null,
          null,
          null,
          null,
          null,
          null,
          null,
          null,
          null,
          null,
          null,
          null,
          null,
          null,
          null,
          null,
          null,
          null,
          null,
          null,
          null,
          null,
          null,
          null,
          null,
          0.6124
        ]
      }
    ]
  }
}
